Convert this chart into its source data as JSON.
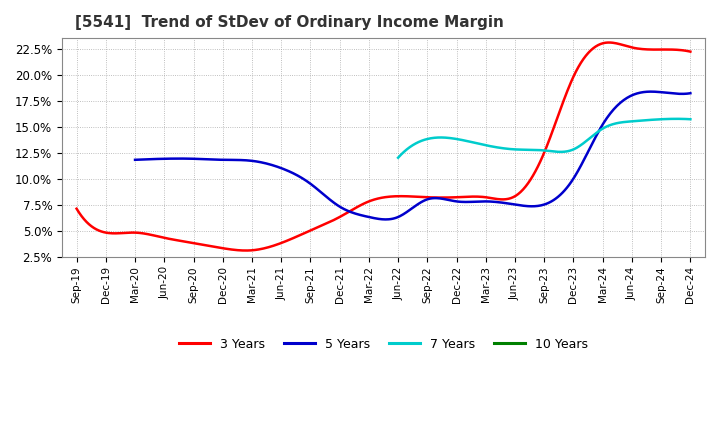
{
  "title": "[5541]  Trend of StDev of Ordinary Income Margin",
  "title_fontsize": 11,
  "title_color": "#333333",
  "background_color": "#ffffff",
  "plot_background_color": "#ffffff",
  "grid_color": "#aaaaaa",
  "ylim": [
    0.025,
    0.235
  ],
  "yticks": [
    0.025,
    0.05,
    0.075,
    0.1,
    0.125,
    0.15,
    0.175,
    0.2,
    0.225
  ],
  "ytick_labels": [
    "2.5%",
    "5.0%",
    "7.5%",
    "10.0%",
    "12.5%",
    "15.0%",
    "17.5%",
    "20.0%",
    "22.5%"
  ],
  "x_labels": [
    "Sep-19",
    "Dec-19",
    "Mar-20",
    "Jun-20",
    "Sep-20",
    "Dec-20",
    "Mar-21",
    "Jun-21",
    "Sep-21",
    "Dec-21",
    "Mar-22",
    "Jun-22",
    "Sep-22",
    "Dec-22",
    "Mar-23",
    "Jun-23",
    "Sep-23",
    "Dec-23",
    "Mar-24",
    "Jun-24",
    "Sep-24",
    "Dec-24"
  ],
  "series": {
    "3 Years": {
      "color": "#ff0000",
      "values": [
        0.071,
        0.048,
        0.048,
        0.043,
        0.038,
        0.033,
        0.031,
        0.038,
        0.05,
        0.063,
        0.078,
        0.083,
        0.082,
        0.082,
        0.082,
        0.083,
        0.125,
        0.198,
        0.23,
        0.226,
        0.224,
        0.222
      ]
    },
    "5 Years": {
      "color": "#0000cc",
      "values": [
        null,
        null,
        0.118,
        0.119,
        0.119,
        0.118,
        0.117,
        0.11,
        0.095,
        0.073,
        0.063,
        0.063,
        0.08,
        0.078,
        0.078,
        0.075,
        0.075,
        0.1,
        0.152,
        0.18,
        0.183,
        0.182
      ]
    },
    "7 Years": {
      "color": "#00cccc",
      "values": [
        null,
        null,
        null,
        null,
        null,
        null,
        null,
        null,
        null,
        null,
        null,
        0.12,
        0.138,
        0.138,
        0.132,
        0.128,
        0.127,
        0.128,
        0.148,
        0.155,
        0.157,
        0.157
      ]
    },
    "10 Years": {
      "color": "#008000",
      "values": [
        null,
        null,
        null,
        null,
        null,
        null,
        null,
        null,
        null,
        null,
        null,
        null,
        null,
        null,
        null,
        null,
        null,
        null,
        null,
        null,
        null,
        null
      ]
    }
  },
  "legend_labels": [
    "3 Years",
    "5 Years",
    "7 Years",
    "10 Years"
  ],
  "legend_colors": [
    "#ff0000",
    "#0000cc",
    "#00cccc",
    "#008000"
  ]
}
